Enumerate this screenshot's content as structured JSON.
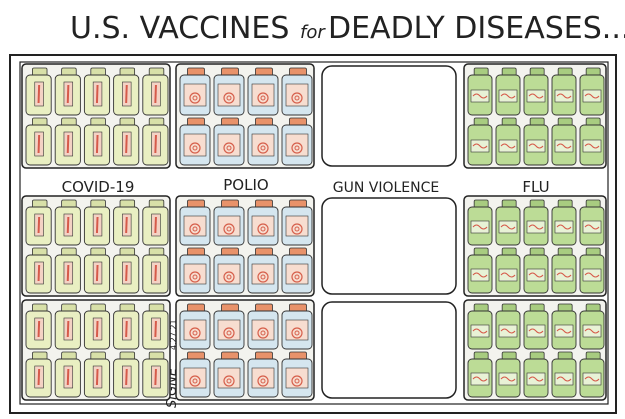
{
  "header": {
    "title": [
      "U.S. VACCINES",
      "for",
      "DEADLY DISEASES..."
    ]
  },
  "panels": [
    {
      "label": "COVID-19"
    },
    {
      "label": "POLIO"
    },
    {
      "label": "GUN VIOLENCE"
    },
    {
      "label": "FLU"
    }
  ],
  "signature": {
    "name": "SIGNE",
    "date": "4.27.21"
  }
}
